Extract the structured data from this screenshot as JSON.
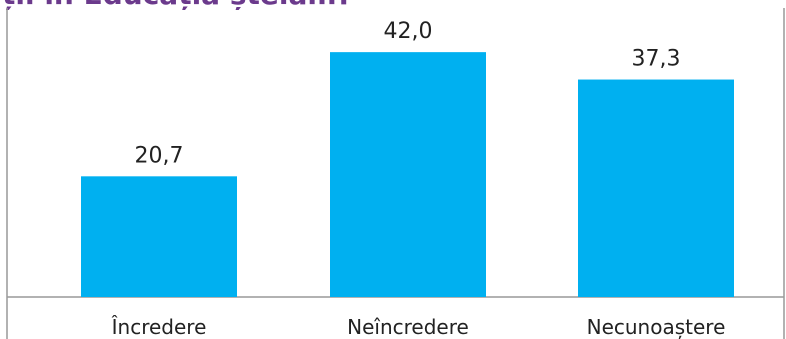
{
  "chart_data": {
    "type": "bar",
    "title": "Partial title: ... și în Educația ... (clipped)",
    "categories": [
      "Încredere",
      "Neîncredere",
      "Necunoaștere"
    ],
    "values": [
      20.7,
      42.0,
      37.3
    ],
    "value_labels": [
      "20,7",
      "42,0",
      "37,3"
    ],
    "ylim": [
      0,
      50
    ],
    "grid": false,
    "legend": "none",
    "colors": {
      "bar": "#00b0f0",
      "title": "#6b3a8c",
      "frame": "#999999"
    }
  }
}
